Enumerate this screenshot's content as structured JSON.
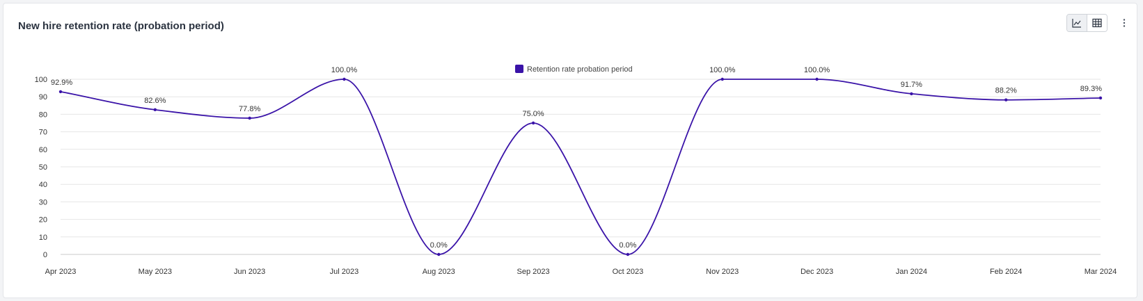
{
  "card": {
    "title": "New hire retention rate (probation period)"
  },
  "toolbar": {
    "icons": [
      "line-chart-icon",
      "table-icon",
      "more-vertical-icon"
    ],
    "active_view": "line-chart"
  },
  "colors": {
    "series": "#3a13a8",
    "grid": "#e6e6e6",
    "axis_text": "#333333"
  },
  "chart_data": {
    "type": "line",
    "title": "New hire retention rate (probation period)",
    "xlabel": "",
    "ylabel": "",
    "categories": [
      "Apr 2023",
      "May 2023",
      "Jun 2023",
      "Jul 2023",
      "Aug 2023",
      "Sep 2023",
      "Oct 2023",
      "Nov 2023",
      "Dec 2023",
      "Jan 2024",
      "Feb 2024",
      "Mar 2024"
    ],
    "series": [
      {
        "name": "Retention rate probation period",
        "values": [
          92.9,
          82.6,
          77.8,
          100.0,
          0.0,
          75.0,
          0.0,
          100.0,
          100.0,
          91.7,
          88.2,
          89.3
        ],
        "data_labels": [
          "92.9%",
          "82.6%",
          "77.8%",
          "100.0%",
          "0.0%",
          "75.0%",
          "0.0%",
          "100.0%",
          "100.0%",
          "91.7%",
          "88.2%",
          "89.3%"
        ]
      }
    ],
    "ylim": [
      0,
      100
    ],
    "yticks": [
      0,
      10,
      20,
      30,
      40,
      50,
      60,
      70,
      80,
      90,
      100
    ],
    "grid": true,
    "legend": "top-center"
  }
}
